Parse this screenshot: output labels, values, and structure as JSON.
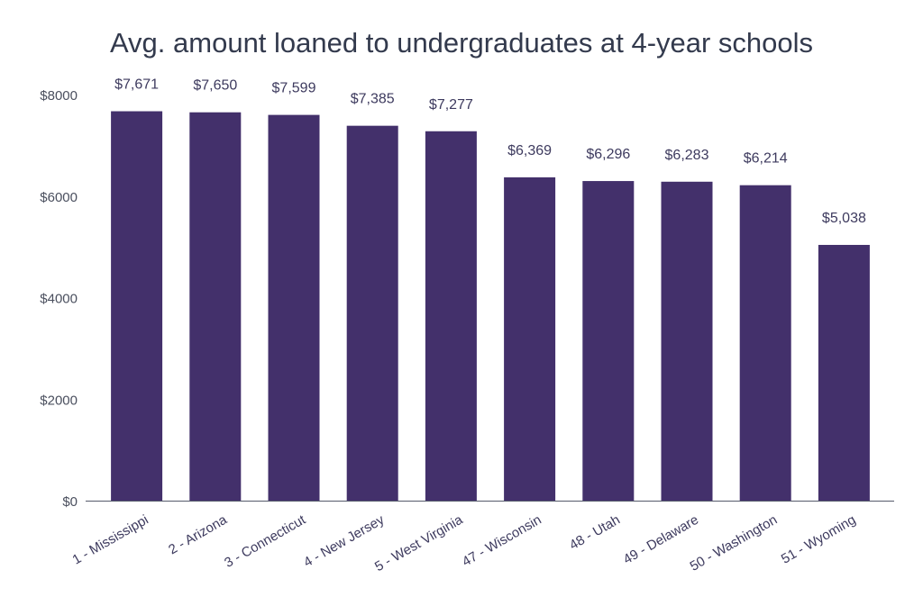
{
  "chart_data": {
    "type": "bar",
    "title": "Avg. amount loaned to undergraduates at 4-year schools",
    "xlabel": "",
    "ylabel": "",
    "categories": [
      "1 - Mississippi",
      "2 - Arizona",
      "3 - Connecticut",
      "4 - New Jersey",
      "5 - West Virginia",
      "47 - Wisconsin",
      "48 - Utah",
      "49 - Delaware",
      "50 - Washington",
      "51 - Wyoming"
    ],
    "values": [
      7671,
      7650,
      7599,
      7385,
      7277,
      6369,
      6296,
      6283,
      6214,
      5038
    ],
    "value_labels": [
      "$7,671",
      "$7,650",
      "$7,599",
      "$7,385",
      "$7,277",
      "$6,369",
      "$6,296",
      "$6,283",
      "$6,214",
      "$5,038"
    ],
    "yticks": [
      0,
      2000,
      4000,
      6000,
      8000
    ],
    "ytick_labels": [
      "$0",
      "$2000",
      "$4000",
      "$6000",
      "$8000"
    ],
    "ylim": [
      0,
      8000
    ],
    "grid": false,
    "bar_color": "#43306b",
    "axis_color": "#555b6b"
  }
}
